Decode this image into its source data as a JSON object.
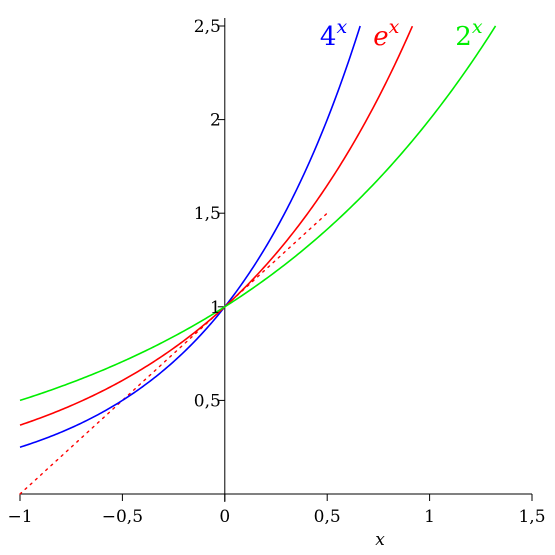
{
  "chart_data": {
    "type": "line",
    "xlabel": "x",
    "xlim": [
      -1,
      1.5
    ],
    "ylim": [
      0,
      2.5
    ],
    "x_ticks": [
      {
        "value": -1,
        "label": "−1"
      },
      {
        "value": -0.5,
        "label": "−0,5"
      },
      {
        "value": 0,
        "label": "0"
      },
      {
        "value": 0.5,
        "label": "0,5"
      },
      {
        "value": 1,
        "label": "1"
      },
      {
        "value": 1.5,
        "label": "1,5"
      }
    ],
    "y_ticks": [
      {
        "value": 0.5,
        "label": "0,5"
      },
      {
        "value": 1,
        "label": "1"
      },
      {
        "value": 1.5,
        "label": "1,5"
      },
      {
        "value": 2,
        "label": "2"
      },
      {
        "value": 2.5,
        "label": "2,5"
      }
    ],
    "series": [
      {
        "label_base": "4",
        "label_exp": "x",
        "color": "#0000ff",
        "x": [
          -1,
          -0.8,
          -0.6,
          -0.4,
          -0.2,
          0,
          0.2,
          0.4,
          0.6,
          0.661
        ],
        "y": [
          0.25,
          0.33,
          0.435,
          0.574,
          0.758,
          1,
          1.32,
          1.741,
          2.297,
          2.5
        ]
      },
      {
        "label_base": "e",
        "label_exp": "x",
        "color": "#ff0000",
        "x": [
          -1,
          -0.8,
          -0.6,
          -0.4,
          -0.2,
          0,
          0.2,
          0.4,
          0.6,
          0.8,
          0.916
        ],
        "y": [
          0.368,
          0.449,
          0.549,
          0.67,
          0.819,
          1,
          1.221,
          1.492,
          1.822,
          2.226,
          2.5
        ]
      },
      {
        "label_base": "2",
        "label_exp": "x",
        "color": "#00ee00",
        "x": [
          -1,
          -0.75,
          -0.5,
          -0.25,
          0,
          0.25,
          0.5,
          0.75,
          1,
          1.25,
          1.322
        ],
        "y": [
          0.5,
          0.595,
          0.707,
          0.841,
          1,
          1.189,
          1.414,
          1.682,
          2,
          2.378,
          2.5
        ]
      }
    ],
    "tangent": {
      "color": "#ff0000",
      "style": "dotted",
      "x": [
        -1,
        0.5
      ],
      "y": [
        0,
        1.5
      ]
    }
  }
}
